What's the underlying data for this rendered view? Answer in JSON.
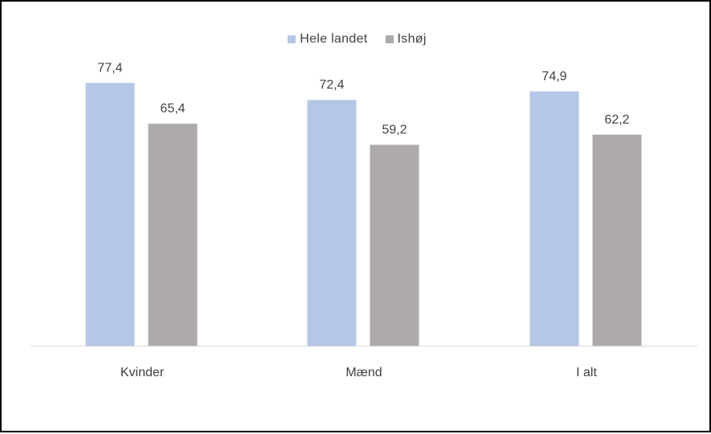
{
  "chart_data": {
    "type": "bar",
    "categories": [
      "Kvinder",
      "Mænd",
      "I alt"
    ],
    "series": [
      {
        "name": "Hele landet",
        "values": [
          77.4,
          72.4,
          74.9
        ],
        "color": "#b4c7e7"
      },
      {
        "name": "Ishøj",
        "values": [
          65.4,
          59.2,
          62.2
        ],
        "color": "#aeaaaa"
      }
    ],
    "value_labels": [
      [
        "77,4",
        "72,4",
        "74,9"
      ],
      [
        "65,4",
        "59,2",
        "62,2"
      ]
    ],
    "ylim": [
      0,
      100
    ],
    "grid": false,
    "legend_position": "top-center"
  }
}
